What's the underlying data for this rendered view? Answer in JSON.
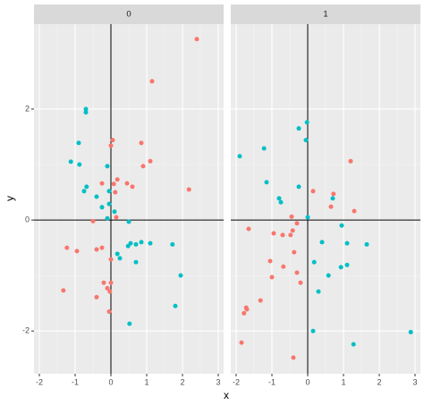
{
  "chart_data": {
    "type": "scatter",
    "xlabel": "x",
    "ylabel": "y",
    "xlim": [
      -2.15,
      3.15
    ],
    "ylim": [
      -2.77,
      3.53
    ],
    "xticks": [
      -2,
      -1,
      0,
      1,
      2,
      3
    ],
    "yticks": [
      -2,
      0,
      2
    ],
    "grid": true,
    "hline": 0,
    "vline": 0,
    "facets": [
      {
        "label": "0",
        "series": [
          {
            "color": "#F8766D",
            "x": [
              2.4,
              1.15,
              0.85,
              1.1,
              0.9,
              0.05,
              0,
              2.18,
              0.18,
              0.08,
              0.45,
              0.6,
              0.12,
              -0.25,
              -0.5,
              0.15,
              -1.23,
              -0.95,
              -0.4,
              -0.25,
              0,
              -1.33,
              -0.4,
              -0.2,
              -0.1,
              -0.03,
              0,
              -0.05
            ],
            "values": [
              3.26,
              2.5,
              1.39,
              1.06,
              0.97,
              1.44,
              1.34,
              0.55,
              0.73,
              0.65,
              0.66,
              0.6,
              0.5,
              0.66,
              -0.02,
              0.05,
              -0.5,
              -0.56,
              -0.53,
              -0.5,
              -0.71,
              -1.27,
              -1.39,
              -1.13,
              -1.23,
              -1.29,
              -1.13,
              -1.65
            ]
          },
          {
            "color": "#00BFC4",
            "x": [
              -0.7,
              -0.7,
              -0.9,
              -1.12,
              -0.88,
              -0.1,
              -0.68,
              -0.75,
              -0.4,
              -0.25,
              -0.05,
              -0.05,
              -0.1,
              0.1,
              0.5,
              0.55,
              0.7,
              0.48,
              0.85,
              1.1,
              1.72,
              0.18,
              0.25,
              0.7,
              1.95,
              1.8,
              0.52
            ],
            "values": [
              2.0,
              1.94,
              1.39,
              1.05,
              1.0,
              0.97,
              0.6,
              0.52,
              0.42,
              0.23,
              0.52,
              0.29,
              0.03,
              0.15,
              -0.03,
              -0.42,
              -0.44,
              -0.47,
              -0.4,
              -0.42,
              -0.44,
              -0.61,
              -0.69,
              -0.76,
              -1.0,
              -1.55,
              -1.87
            ]
          }
        ]
      },
      {
        "label": "1",
        "series": [
          {
            "color": "#F8766D",
            "x": [
              0.15,
              0.72,
              1.2,
              1.3,
              0.65,
              -0.45,
              -0.3,
              -1.65,
              -0.42,
              -0.48,
              -0.7,
              -0.95,
              -0.38,
              -1.05,
              -0.68,
              -0.3,
              -0.2,
              -1.0,
              -1.32,
              -1.72,
              -1.78,
              -1.7,
              -1.85,
              -0.4
            ],
            "values": [
              0.52,
              0.47,
              1.06,
              0.16,
              0.24,
              0.06,
              -0.06,
              -0.16,
              -0.19,
              -0.27,
              -0.27,
              -0.24,
              -0.58,
              -0.74,
              -0.84,
              -0.95,
              -1.13,
              -1.03,
              -1.45,
              -1.58,
              -1.68,
              -1.61,
              -2.21,
              -2.48
            ]
          },
          {
            "color": "#00BFC4",
            "x": [
              -0.02,
              -0.25,
              -0.05,
              -1.22,
              -1.9,
              -1.15,
              -0.8,
              -0.75,
              -0.25,
              0,
              0.7,
              0.95,
              0.4,
              1.1,
              1.65,
              0.18,
              0.93,
              1.1,
              0.58,
              0.3,
              0.15,
              1.28,
              2.88
            ],
            "values": [
              1.76,
              1.65,
              1.44,
              1.29,
              1.15,
              0.68,
              0.39,
              0.32,
              0.6,
              0.05,
              0.39,
              -0.1,
              -0.4,
              -0.42,
              -0.44,
              -0.76,
              -0.85,
              -0.81,
              -1.0,
              -1.29,
              -2.0,
              -2.24,
              -2.02
            ]
          }
        ]
      }
    ]
  }
}
